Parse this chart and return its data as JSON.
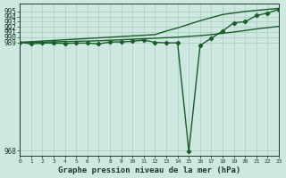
{
  "title": "Graphe pression niveau de la mer (hPa)",
  "background_color": "#cce8e0",
  "grid_color": "#aaccbe",
  "line_color": "#1a5c2a",
  "xlim": [
    0,
    23
  ],
  "ylim": [
    967.0,
    996.5
  ],
  "yticks": [
    968,
    989,
    990,
    991,
    992,
    993,
    994,
    995
  ],
  "xticks": [
    0,
    1,
    2,
    3,
    4,
    5,
    6,
    7,
    8,
    9,
    10,
    11,
    12,
    13,
    14,
    15,
    16,
    17,
    18,
    19,
    20,
    21,
    22,
    23
  ],
  "line_steep_x": [
    0,
    12,
    13,
    14,
    15,
    16,
    17,
    18,
    19,
    20,
    21,
    22,
    23
  ],
  "line_steep_y": [
    989.0,
    990.5,
    991.2,
    991.8,
    992.5,
    993.2,
    993.8,
    994.4,
    994.7,
    995.0,
    995.2,
    995.4,
    995.6
  ],
  "line_mid_x": [
    0,
    1,
    2,
    3,
    4,
    5,
    6,
    7,
    8,
    9,
    10,
    11,
    12,
    13,
    14,
    15,
    16,
    17,
    18,
    19,
    20,
    21,
    22,
    23
  ],
  "line_mid_y": [
    989.0,
    989.0,
    989.05,
    989.1,
    989.15,
    989.2,
    989.25,
    989.3,
    989.4,
    989.5,
    989.6,
    989.7,
    989.8,
    989.9,
    990.0,
    990.15,
    990.3,
    990.5,
    990.75,
    991.0,
    991.3,
    991.6,
    991.85,
    992.1
  ],
  "line_wavy_x": [
    0,
    1,
    2,
    3,
    4,
    5,
    6,
    7,
    8,
    9,
    10,
    11,
    12,
    13,
    14,
    15,
    16,
    17,
    18,
    19,
    20,
    21,
    22,
    23
  ],
  "line_wavy_y": [
    989.0,
    988.7,
    988.85,
    988.85,
    988.8,
    988.85,
    988.85,
    988.7,
    989.05,
    989.1,
    989.2,
    989.45,
    989.0,
    988.9,
    988.9,
    967.8,
    988.4,
    989.8,
    991.2,
    992.8,
    993.0,
    994.2,
    994.7,
    995.4
  ]
}
